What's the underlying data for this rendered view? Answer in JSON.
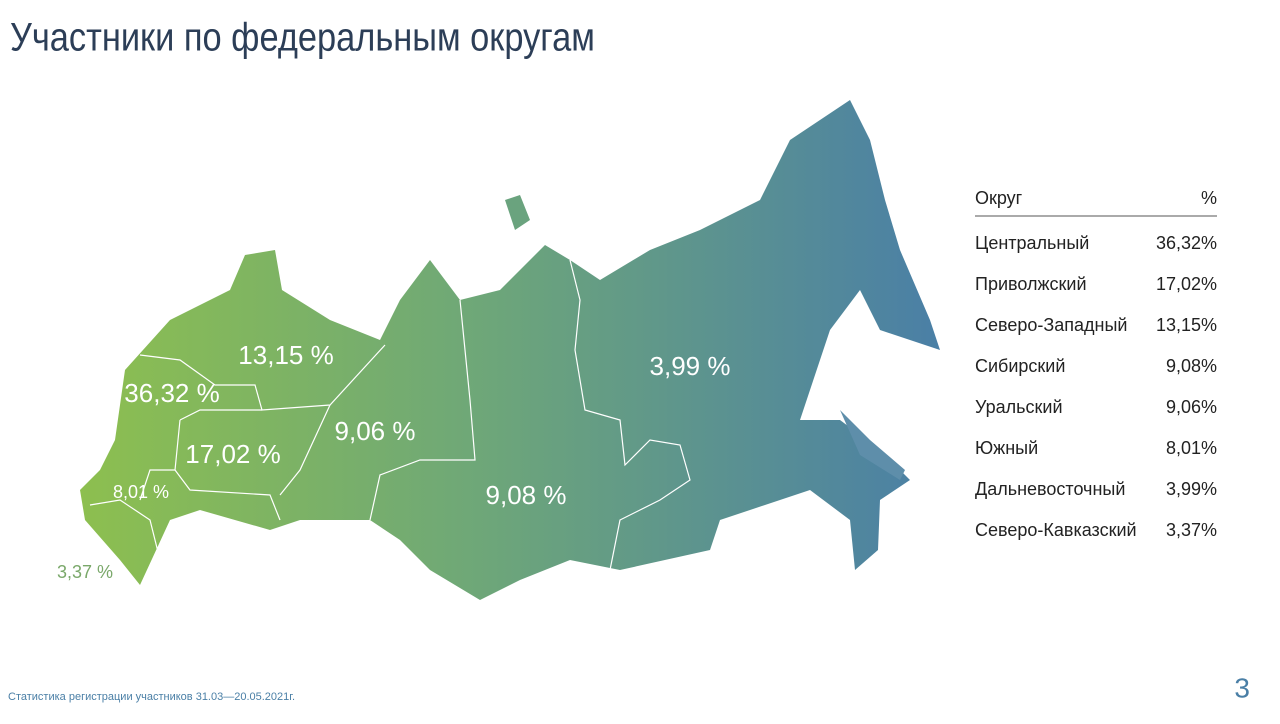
{
  "title": "Участники по федеральным округам",
  "map": {
    "labels": [
      "13,15 %",
      "36,32 %",
      "17,02 %",
      "9,06 %",
      "8,01 %",
      "3,37 %",
      "9,08 %",
      "3,99 %"
    ]
  },
  "table": {
    "header": [
      "Округ",
      "%"
    ],
    "rows": [
      [
        "Центральный",
        "36,32%"
      ],
      [
        "Приволжский",
        "17,02%"
      ],
      [
        "Северо-Западный",
        "13,15%"
      ],
      [
        "Сибирский",
        "9,08%"
      ],
      [
        "Уральский",
        "9,06%"
      ],
      [
        "Южный",
        "8,01%"
      ],
      [
        "Дальневосточный",
        "3,99%"
      ],
      [
        "Северо-Кавказский",
        "3,37%"
      ]
    ]
  },
  "footer": "Статистика регистрации участников 31.03—20.05.2021г.",
  "page_number": "3"
}
